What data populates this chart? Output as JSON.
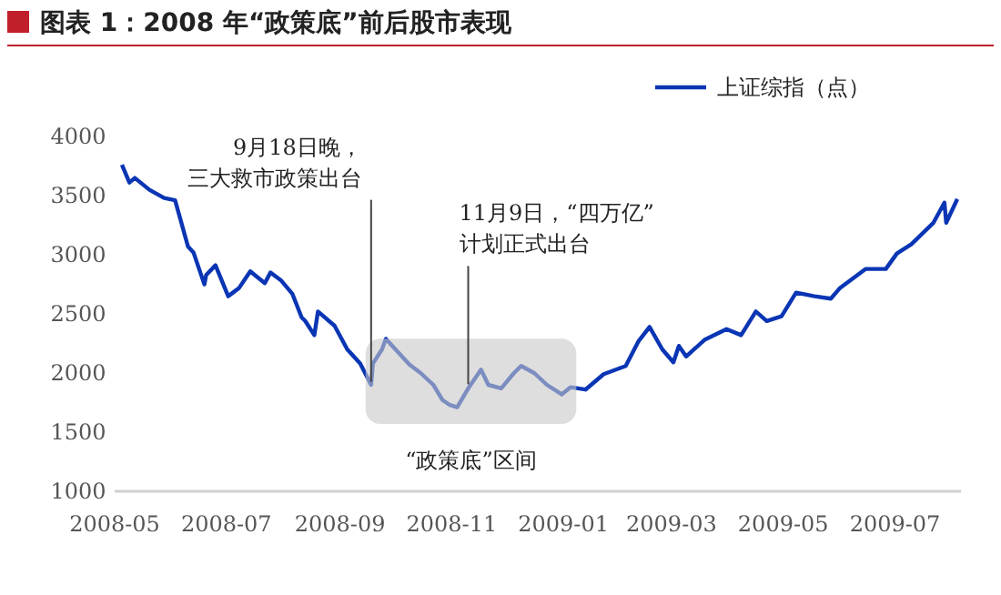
{
  "chart_data": {
    "type": "line",
    "title": "图表 1：2008 年“政策底”前后股市表现",
    "xlim": [
      "2008-05-01",
      "2009-08-06"
    ],
    "xticks": [
      "2008-05",
      "2008-07",
      "2008-09",
      "2008-11",
      "2009-01",
      "2009-03",
      "2009-05",
      "2009-07"
    ],
    "ylim": [
      1000,
      4000
    ],
    "yticks": [
      1000,
      1500,
      2000,
      2500,
      3000,
      3500,
      4000
    ],
    "grid": false,
    "legend": "top right",
    "series": [
      {
        "name": "上证综指（点）",
        "color": "#0a35b4",
        "x": [
          "2008-05-05",
          "2008-05-09",
          "2008-05-12",
          "2008-05-20",
          "2008-05-28",
          "2008-06-03",
          "2008-06-10",
          "2008-06-13",
          "2008-06-19",
          "2008-06-20",
          "2008-06-25",
          "2008-07-02",
          "2008-07-08",
          "2008-07-14",
          "2008-07-22",
          "2008-07-25",
          "2008-07-31",
          "2008-08-06",
          "2008-08-11",
          "2008-08-13",
          "2008-08-18",
          "2008-08-20",
          "2008-08-29",
          "2008-09-05",
          "2008-09-12",
          "2008-09-18",
          "2008-09-19",
          "2008-09-24",
          "2008-09-26",
          "2008-10-09",
          "2008-10-15",
          "2008-10-22",
          "2008-10-27",
          "2008-10-31",
          "2008-11-04",
          "2008-11-10",
          "2008-11-17",
          "2008-11-21",
          "2008-11-28",
          "2008-12-05",
          "2008-12-09",
          "2008-12-16",
          "2008-12-23",
          "2008-12-31",
          "2009-01-05",
          "2009-01-13",
          "2009-01-23",
          "2009-02-04",
          "2009-02-11",
          "2009-02-17",
          "2009-02-24",
          "2009-03-02",
          "2009-03-05",
          "2009-03-09",
          "2009-03-19",
          "2009-03-31",
          "2009-04-08",
          "2009-04-16",
          "2009-04-22",
          "2009-04-30",
          "2009-05-08",
          "2009-05-18",
          "2009-05-27",
          "2009-06-01",
          "2009-06-15",
          "2009-06-26",
          "2009-07-02",
          "2009-07-10",
          "2009-07-22",
          "2009-07-28",
          "2009-07-29",
          "2009-08-04"
        ],
        "values": [
          3760,
          3610,
          3650,
          3550,
          3480,
          3460,
          3070,
          3020,
          2750,
          2830,
          2910,
          2650,
          2720,
          2860,
          2760,
          2850,
          2780,
          2670,
          2470,
          2440,
          2320,
          2520,
          2400,
          2200,
          2080,
          1900,
          2080,
          2200,
          2290,
          2070,
          2000,
          1900,
          1770,
          1730,
          1710,
          1870,
          2030,
          1900,
          1870,
          2000,
          2060,
          2000,
          1900,
          1820,
          1880,
          1860,
          1990,
          2060,
          2270,
          2390,
          2200,
          2090,
          2230,
          2140,
          2280,
          2370,
          2320,
          2520,
          2440,
          2480,
          2680,
          2650,
          2630,
          2720,
          2880,
          2880,
          3010,
          3090,
          3270,
          3440,
          3270,
          3470
        ]
      }
    ],
    "bands": [
      {
        "axis": "x",
        "from": "2008-09-15",
        "to": "2009-01-08",
        "label": "“政策底”区间",
        "color": "#c8c8c8"
      }
    ],
    "annotations": [
      {
        "text": "9月18日晚，三大救市政策出台",
        "x": "2008-09-18",
        "y": 1895
      },
      {
        "text": "11月9日，“四万亿”计划正式出台",
        "x": "2008-11-10",
        "y": 1874
      }
    ]
  }
}
